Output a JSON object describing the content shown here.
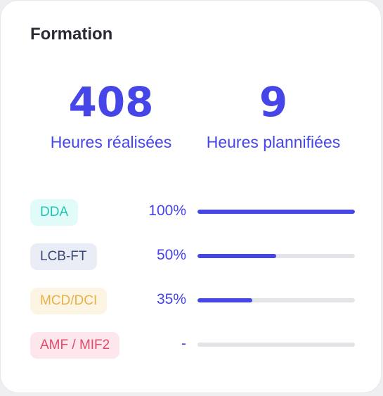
{
  "card": {
    "title": "Formation"
  },
  "stats": [
    {
      "value": "408",
      "label": "Heures réalisées"
    },
    {
      "value": "9",
      "label": "Heures plannifiées"
    }
  ],
  "colors": {
    "accent": "#4545e8",
    "track": "#e3e3e8",
    "dda_text": "#23c4b4",
    "dda_bg": "#e0fbf8",
    "lcb_text": "#3c4a78",
    "lcb_bg": "#eaedf6",
    "mcd_text": "#e8b148",
    "mcd_bg": "#fdf5e3",
    "amf_text": "#e24a6a",
    "amf_bg": "#fde6ec"
  },
  "trainings": [
    {
      "name": "DDA",
      "percent_label": "100%",
      "progress": 1.0
    },
    {
      "name": "LCB-FT",
      "percent_label": "50%",
      "progress": 0.5
    },
    {
      "name": "MCD/DCI",
      "percent_label": "35%",
      "progress": 0.35
    },
    {
      "name": "AMF / MIF2",
      "percent_label": "-",
      "progress": 0
    }
  ]
}
